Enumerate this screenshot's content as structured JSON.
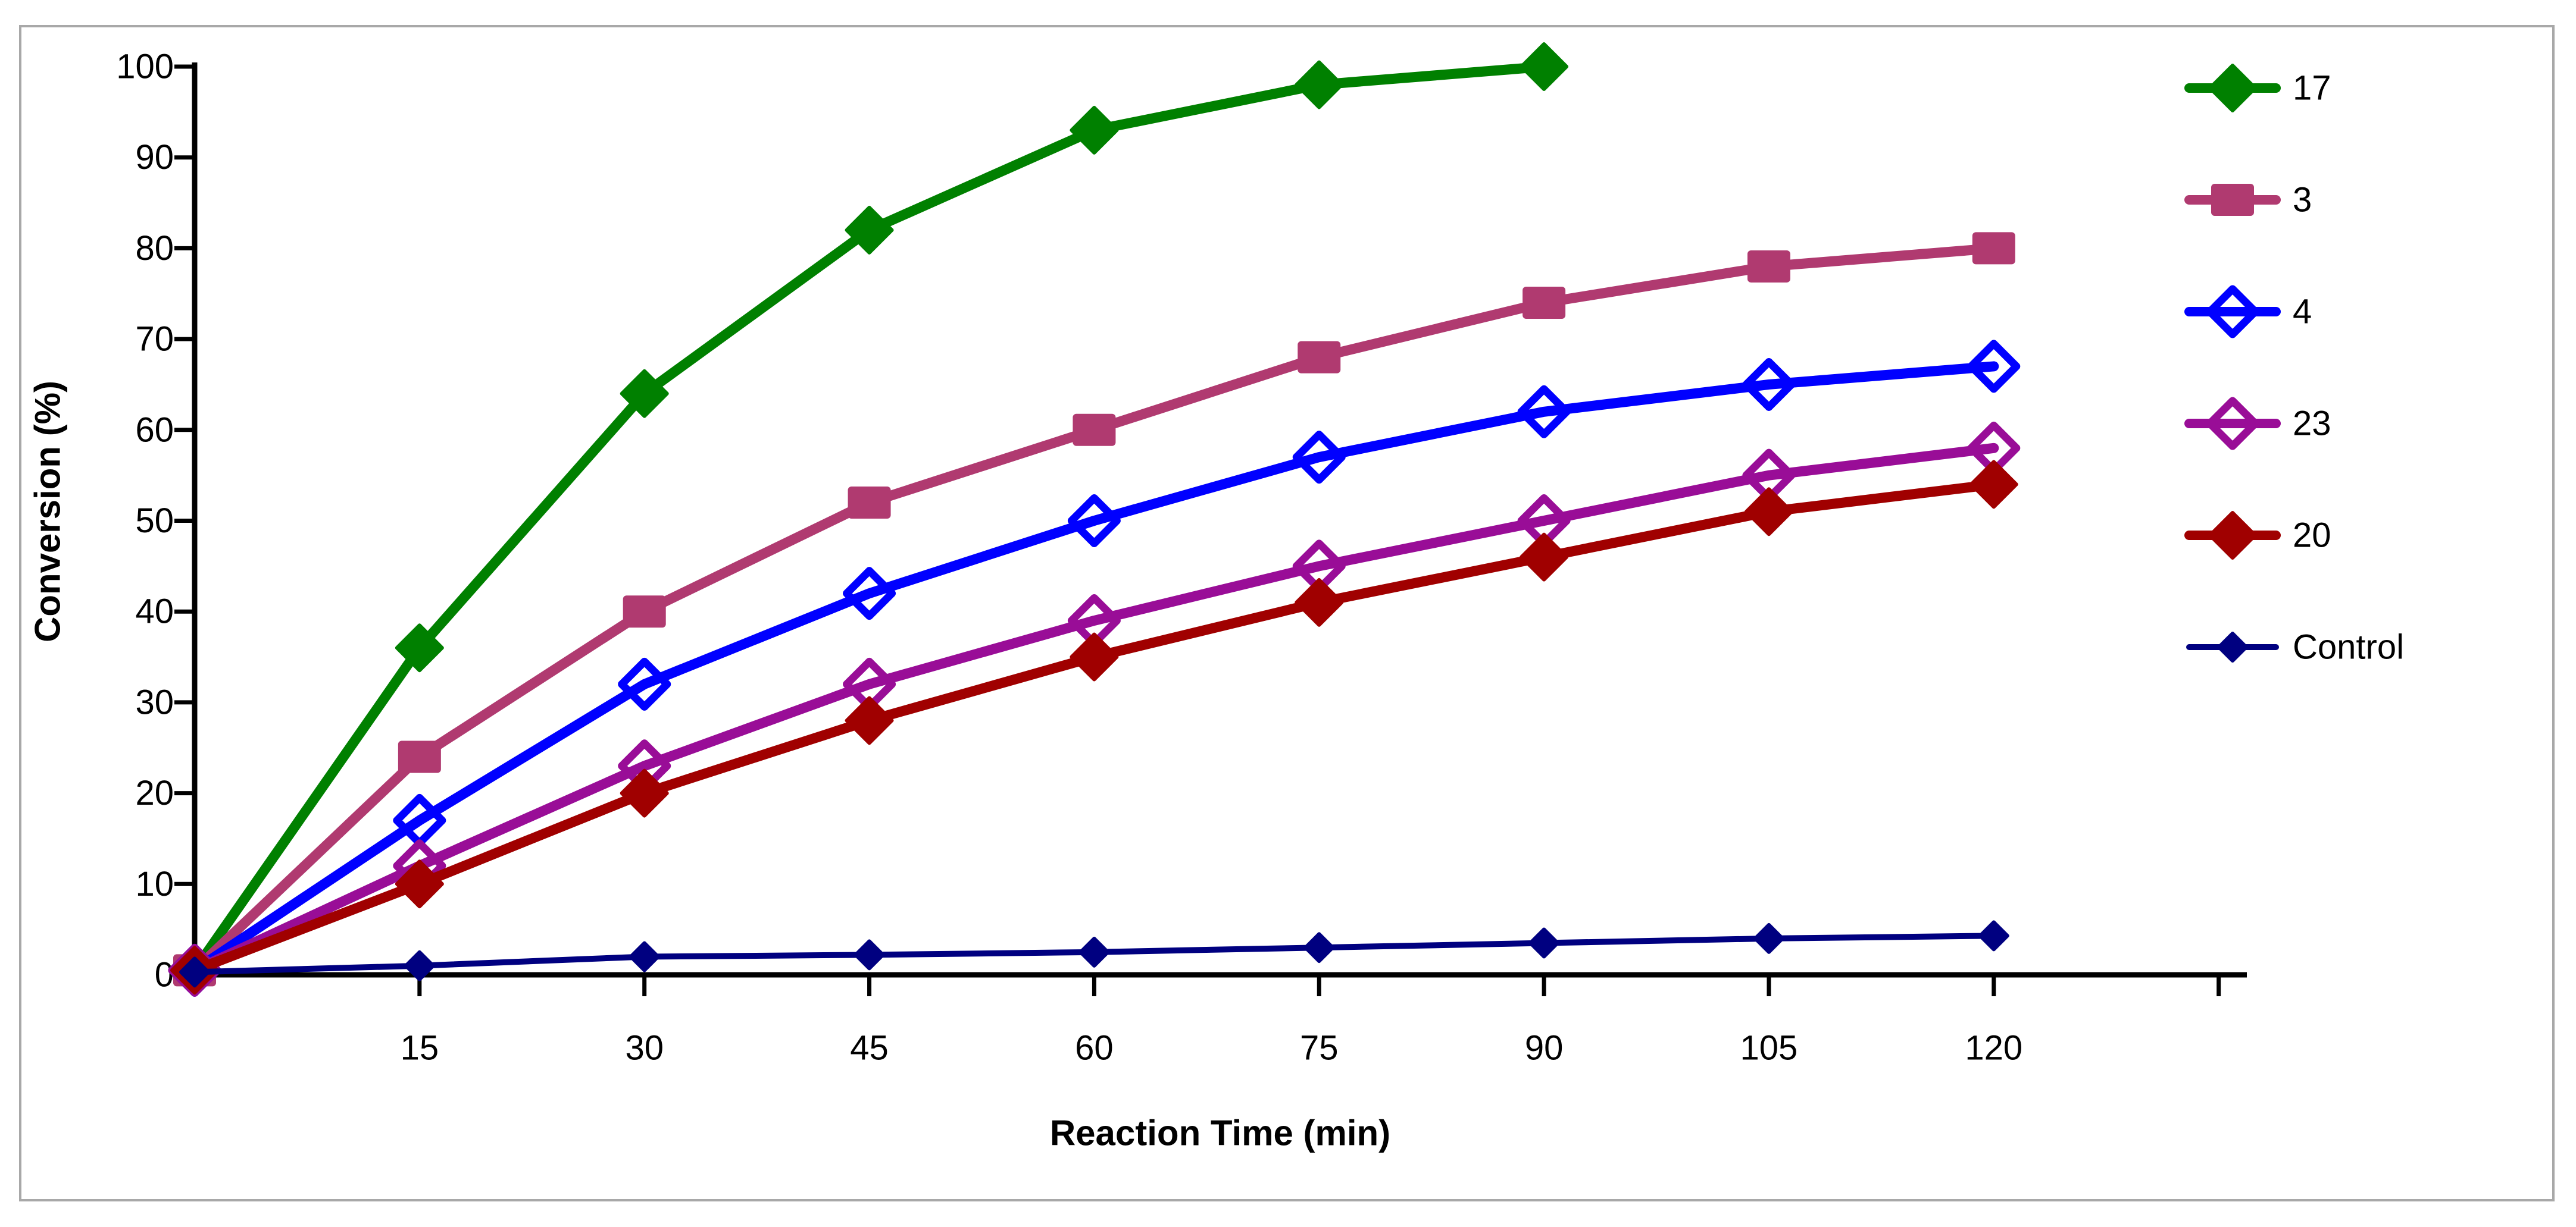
{
  "figure": {
    "background": "#ffffff",
    "frame_color": "#a8a8a8",
    "axis_color": "#000000",
    "text_color": "#000000"
  },
  "chart_data": {
    "type": "line",
    "title": "",
    "xlabel": "Reaction Time (min)",
    "ylabel": "Conversion (%)",
    "xlim": [
      0,
      137
    ],
    "ylim": [
      0,
      100
    ],
    "x_ticks": [
      15,
      30,
      45,
      60,
      75,
      90,
      105,
      120
    ],
    "x_unlabeled_end_tick": 135,
    "y_ticks": [
      0,
      10,
      20,
      30,
      40,
      50,
      60,
      70,
      80,
      90,
      100
    ],
    "grid": false,
    "legend_position": "right",
    "series": [
      {
        "name": "17",
        "color": "#008000",
        "marker": "diamond-filled",
        "marker_size": "large",
        "line_width": "thick",
        "x": [
          0,
          15,
          30,
          45,
          60,
          75,
          90
        ],
        "values": [
          0.5,
          36,
          64,
          82,
          93,
          98,
          100
        ]
      },
      {
        "name": "3",
        "color": "#b03a70",
        "marker": "square-filled",
        "marker_size": "large",
        "line_width": "thick",
        "x": [
          0,
          15,
          30,
          45,
          60,
          75,
          90,
          105,
          120
        ],
        "values": [
          0.5,
          24,
          40,
          52,
          60,
          68,
          74,
          78,
          80
        ]
      },
      {
        "name": "4",
        "color": "#0000ff",
        "marker": "diamond-open",
        "marker_size": "large",
        "line_width": "thick",
        "x": [
          0,
          15,
          30,
          45,
          60,
          75,
          90,
          105,
          120
        ],
        "values": [
          0.5,
          17,
          32,
          42,
          50,
          57,
          62,
          65,
          67
        ]
      },
      {
        "name": "23",
        "color": "#990d97",
        "marker": "diamond-open",
        "marker_size": "large",
        "line_width": "thick",
        "x": [
          0,
          15,
          30,
          45,
          60,
          75,
          90,
          105,
          120
        ],
        "values": [
          0.5,
          12,
          23,
          32,
          39,
          45,
          50,
          55,
          58
        ]
      },
      {
        "name": "20",
        "color": "#a00000",
        "marker": "diamond-filled",
        "marker_size": "large",
        "line_width": "thick",
        "x": [
          0,
          15,
          30,
          45,
          60,
          75,
          90,
          105,
          120
        ],
        "values": [
          0.5,
          10,
          20,
          28,
          35,
          41,
          46,
          51,
          54
        ]
      },
      {
        "name": "Control",
        "color": "#000080",
        "marker": "diamond-filled",
        "marker_size": "small",
        "line_width": "thin",
        "x": [
          0,
          15,
          30,
          45,
          60,
          75,
          90,
          105,
          120
        ],
        "values": [
          0.3,
          1,
          2,
          2.2,
          2.5,
          3,
          3.5,
          4,
          4.3
        ]
      }
    ]
  }
}
